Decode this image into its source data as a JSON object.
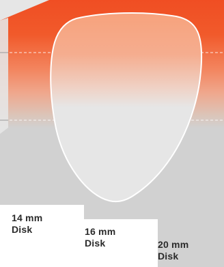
{
  "diagram": {
    "colors": {
      "top_band": "#f15a2b",
      "mid_band": "#f2a07e",
      "lower_band": "#d1d1d1",
      "corner_wedge": "#e6e6e6",
      "page_background": "#ffffff",
      "lens_outline": "#ffffff",
      "guide_lines": "#ffffff",
      "label_text": "#2a2a2a"
    },
    "disks": [
      {
        "size": "14 mm",
        "unit": "Disk"
      },
      {
        "size": "16 mm",
        "unit": "Disk"
      },
      {
        "size": "20 mm",
        "unit": "Disk"
      }
    ]
  }
}
